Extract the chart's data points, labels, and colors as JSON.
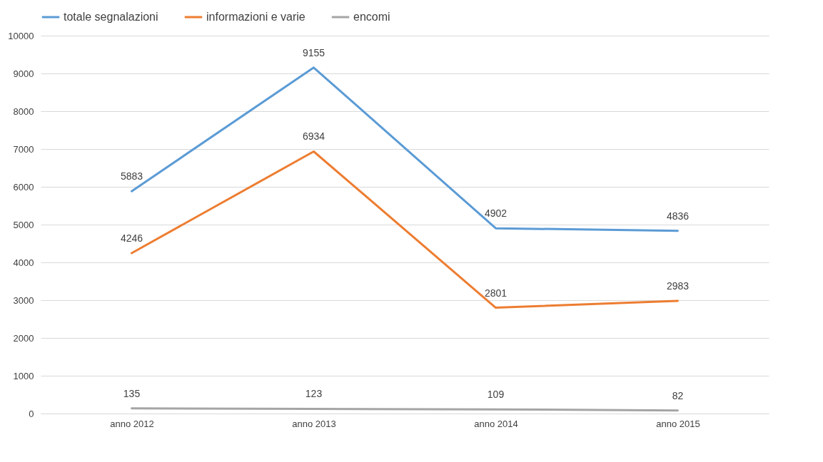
{
  "chart_data": {
    "type": "line",
    "categories": [
      "anno 2012",
      "anno 2013",
      "anno 2014",
      "anno 2015"
    ],
    "series": [
      {
        "name": "totale segnalazioni",
        "color": "#5b9bd5",
        "values": [
          5883,
          9155,
          4902,
          4836
        ]
      },
      {
        "name": "informazioni e varie",
        "color": "#ed7d31",
        "values": [
          4246,
          6934,
          2801,
          2983
        ]
      },
      {
        "name": "encomi",
        "color": "#a5a5a5",
        "values": [
          135,
          123,
          109,
          82
        ]
      }
    ],
    "ylim": [
      0,
      10000
    ],
    "yticks": [
      0,
      1000,
      2000,
      3000,
      4000,
      5000,
      6000,
      7000,
      8000,
      9000,
      10000
    ],
    "grid": "y",
    "legend": "top",
    "data_labels": true,
    "marker": "none",
    "line_style": "solid"
  }
}
